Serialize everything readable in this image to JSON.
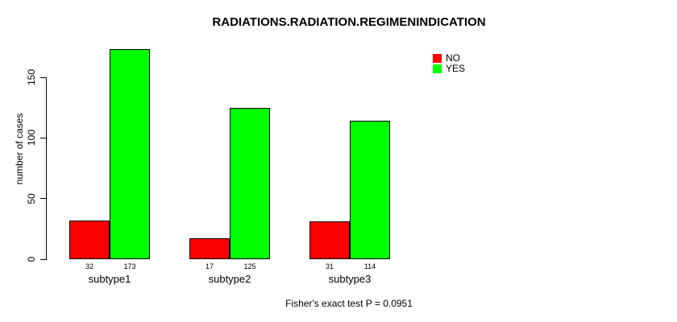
{
  "chart_data": {
    "type": "bar",
    "title": "RADIATIONS.RADIATION.REGIMENINDICATION",
    "categories": [
      "subtype1",
      "subtype2",
      "subtype3"
    ],
    "series": [
      {
        "name": "NO",
        "color": "#FF0000",
        "values": [
          32,
          17,
          31
        ]
      },
      {
        "name": "YES",
        "color": "#00FF00",
        "values": [
          173,
          125,
          114
        ]
      }
    ],
    "bar_value_labels": [
      [
        "32",
        "17",
        "31"
      ],
      [
        "173",
        "125",
        "114"
      ]
    ],
    "xlabel": "",
    "ylabel": "number of cases",
    "yticks": [
      0,
      50,
      100,
      150
    ],
    "ylim": [
      0,
      173
    ],
    "grid": false,
    "legend_position": "topright",
    "annotation": "Fisher's exact test P = 0.0951"
  },
  "colors": {
    "background": "#FFFFFF",
    "axis": "#000000",
    "text": "#000000",
    "bar_border": "#000000",
    "no": "#FF0000",
    "yes": "#00FF00"
  }
}
